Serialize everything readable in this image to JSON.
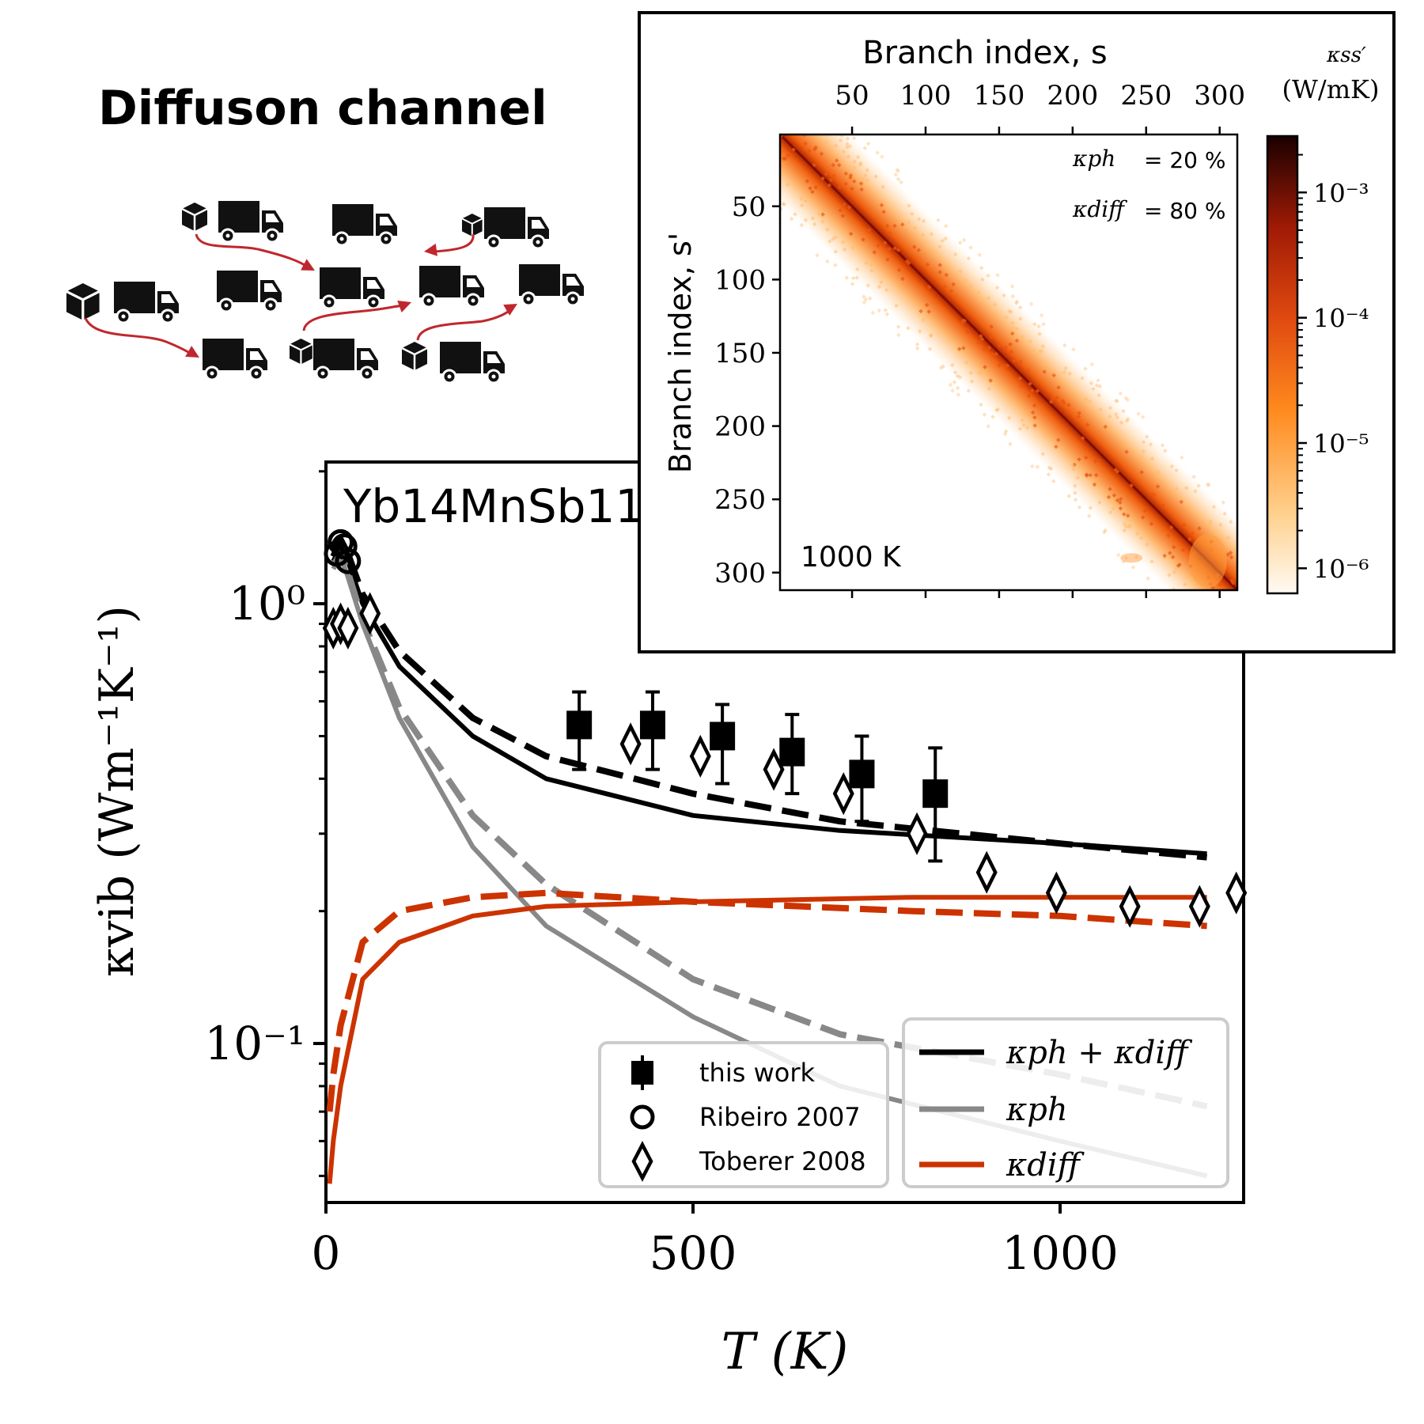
{
  "header": {
    "title": "Diffuson channel"
  },
  "icons": {
    "truck": "truck-icon",
    "box": "box-icon",
    "arrow": "arrow-icon"
  },
  "colors": {
    "black": "#000000",
    "grey": "#888888",
    "orange": "#cc3300",
    "arrow_red": "#c0272d"
  },
  "chart_data": [
    {
      "type": "line",
      "material_label": "Yb14MnSb11",
      "xlabel": "T (K)",
      "ylabel": "κvib (Wm⁻¹K⁻¹)",
      "xlim": [
        0,
        1250
      ],
      "ylim": [
        0.045,
        2.0
      ],
      "yscale": "log",
      "x_ticks": [
        0,
        500,
        1000
      ],
      "y_tick_labels": [
        "10⁰",
        "10⁻¹"
      ],
      "y_tick_values": [
        1.0,
        0.1
      ],
      "grid": false,
      "series": [
        {
          "name": "κph + κdiff",
          "color": "#000000",
          "style": "solid",
          "x": [
            10,
            20,
            30,
            50,
            100,
            200,
            300,
            500,
            700,
            1000,
            1200
          ],
          "y": [
            1.25,
            1.35,
            1.25,
            1.0,
            0.72,
            0.5,
            0.4,
            0.33,
            0.305,
            0.285,
            0.27
          ]
        },
        {
          "name": "κph + κdiff (dashed)",
          "color": "#000000",
          "style": "dashed",
          "x": [
            10,
            20,
            30,
            50,
            100,
            200,
            300,
            500,
            700,
            1000,
            1200
          ],
          "y": [
            1.28,
            1.4,
            1.3,
            1.05,
            0.78,
            0.55,
            0.45,
            0.37,
            0.32,
            0.285,
            0.265
          ]
        },
        {
          "name": "κph",
          "color": "#888888",
          "style": "solid",
          "x": [
            10,
            20,
            30,
            50,
            100,
            200,
            300,
            500,
            700,
            1000,
            1200
          ],
          "y": [
            1.2,
            1.28,
            1.15,
            0.9,
            0.55,
            0.28,
            0.185,
            0.115,
            0.08,
            0.06,
            0.05
          ]
        },
        {
          "name": "κph (dashed)",
          "color": "#888888",
          "style": "dashed",
          "x": [
            10,
            20,
            30,
            50,
            100,
            200,
            300,
            500,
            700,
            1000,
            1200
          ],
          "y": [
            1.22,
            1.3,
            1.18,
            0.92,
            0.58,
            0.33,
            0.23,
            0.14,
            0.105,
            0.085,
            0.072
          ]
        },
        {
          "name": "κdiff",
          "color": "#cc3300",
          "style": "solid",
          "x": [
            5,
            10,
            20,
            50,
            100,
            200,
            300,
            500,
            800,
            1200
          ],
          "y": [
            0.048,
            0.06,
            0.08,
            0.14,
            0.17,
            0.195,
            0.205,
            0.21,
            0.215,
            0.215
          ]
        },
        {
          "name": "κdiff (dashed)",
          "color": "#cc3300",
          "style": "dashed",
          "x": [
            5,
            10,
            20,
            50,
            100,
            200,
            300,
            500,
            800,
            1000,
            1200
          ],
          "y": [
            0.07,
            0.085,
            0.11,
            0.17,
            0.2,
            0.215,
            0.22,
            0.21,
            0.2,
            0.195,
            0.185
          ]
        }
      ],
      "experimental": [
        {
          "name": "this work",
          "marker": "square",
          "x": [
            345,
            445,
            540,
            635,
            730,
            830
          ],
          "y": [
            0.53,
            0.53,
            0.5,
            0.46,
            0.41,
            0.37
          ],
          "err_low": [
            0.42,
            0.42,
            0.39,
            0.37,
            0.32,
            0.26
          ],
          "err_high": [
            0.63,
            0.63,
            0.59,
            0.56,
            0.5,
            0.47
          ]
        },
        {
          "name": "Ribeiro 2007",
          "marker": "circle",
          "x": [
            15,
            20,
            25,
            30
          ],
          "y": [
            1.3,
            1.38,
            1.35,
            1.25
          ]
        },
        {
          "name": "Toberer 2008",
          "marker": "diamond",
          "x": [
            10,
            20,
            30,
            60,
            415,
            510,
            610,
            705,
            805,
            900,
            995,
            1095,
            1190,
            1240
          ],
          "y": [
            0.88,
            0.9,
            0.88,
            0.95,
            0.48,
            0.45,
            0.42,
            0.37,
            0.3,
            0.245,
            0.22,
            0.205,
            0.205,
            0.22
          ]
        }
      ],
      "legend_markers": [
        "this work",
        "Ribeiro 2007",
        "Toberer 2008"
      ],
      "legend_lines": [
        "κph + κdiff",
        "κph",
        "κdiff"
      ],
      "legend_placement": "bottom-right"
    },
    {
      "type": "heatmap",
      "xlabel": "Branch index, s",
      "ylabel": "Branch index, s'",
      "x_ticks": [
        50,
        100,
        150,
        200,
        250,
        300
      ],
      "y_ticks": [
        50,
        100,
        150,
        200,
        250,
        300
      ],
      "range": [
        1,
        312
      ],
      "colorbar_label": "κss′",
      "colorbar_unit": "(W/mK)",
      "colorbar_scale": "log",
      "colorbar_ticks": [
        "10⁻³",
        "10⁻⁴",
        "10⁻⁵",
        "10⁻⁶"
      ],
      "annotations": {
        "kph_symbol": "κph",
        "kph_value": "= 20 %",
        "kdiff_symbol": "κdiff",
        "kdiff_value": "= 80 %",
        "temperature": "1000 K"
      }
    }
  ]
}
